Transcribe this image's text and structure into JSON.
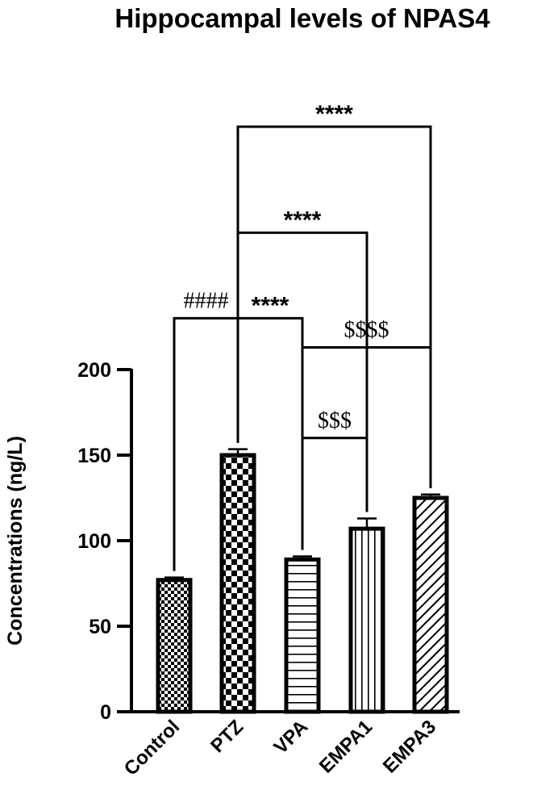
{
  "chart_data": {
    "type": "bar",
    "title": "Hippocampal levels of NPAS4",
    "xlabel": "",
    "ylabel": "Concentrations (ng/L)",
    "ylim": [
      0,
      200
    ],
    "yticks": [
      0,
      50,
      100,
      150,
      200
    ],
    "grid": false,
    "categories": [
      "Control",
      "PTZ",
      "VPA",
      "EMPA1",
      "EMPA3"
    ],
    "values": [
      77,
      150,
      89,
      107,
      125
    ],
    "errors": [
      1.5,
      3.5,
      1.8,
      6,
      2
    ],
    "patterns": [
      "fine-checker",
      "coarse-checker",
      "horizontal-lines",
      "vertical-lines",
      "diagonal-lines"
    ],
    "bar_color": "#000000",
    "significance": [
      {
        "from": "Control",
        "to": "PTZ",
        "label": "####",
        "level": 230
      },
      {
        "from": "PTZ",
        "to": "VPA",
        "label": "****",
        "level": 230
      },
      {
        "from": "PTZ",
        "to": "EMPA1",
        "label": "****",
        "level": 280
      },
      {
        "from": "PTZ",
        "to": "EMPA3",
        "label": "****",
        "level": 342
      },
      {
        "from": "VPA",
        "to": "EMPA3",
        "label": "$$$$",
        "level": 213
      },
      {
        "from": "VPA",
        "to": "EMPA1",
        "label": "$$$",
        "level": 160
      }
    ]
  }
}
